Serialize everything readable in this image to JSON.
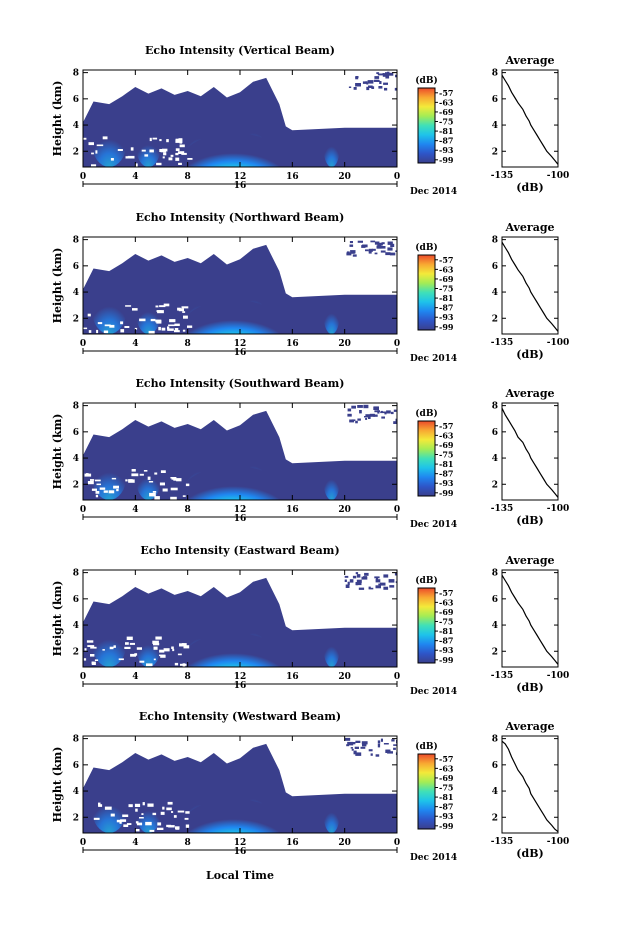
{
  "chart_data": {
    "type": "heatmap",
    "shared": {
      "x_ticks": [
        "0",
        "4",
        "8",
        "12",
        "16",
        "20",
        "0"
      ],
      "x_range": [
        0,
        24
      ],
      "date_label": "16",
      "month_label": "Dec 2014",
      "xlabel": "Local Time",
      "ylabel": "Height (km)",
      "y_ticks": [
        "2",
        "4",
        "6",
        "8"
      ],
      "y_range": [
        0.8,
        8.2
      ],
      "colorbar_title": "(dB)",
      "colorbar_ticks": [
        "-57",
        "-63",
        "-69",
        "-75",
        "-81",
        "-87",
        "-93",
        "-99"
      ],
      "colorbar_range": [
        -101,
        -54
      ],
      "avg_title": "Average",
      "avg_xlabel": "(dB)",
      "avg_xrange": [
        -135,
        -100
      ],
      "colors": {
        "background": "#3a3f8c",
        "colormap": [
          "#3a3f8c",
          "#2e55c8",
          "#1f86f0",
          "#1ec3ea",
          "#3fe0b8",
          "#a4ec55",
          "#f3ea3a",
          "#f8a832",
          "#ec4a2a"
        ]
      }
    },
    "panels": [
      {
        "title": "Echo Intensity (Vertical Beam)",
        "avg_xticks": [
          "-135",
          "-100"
        ],
        "profile_x": [
          -135,
          -133,
          -131,
          -129,
          -127,
          -125,
          -122,
          -120,
          -118,
          -117,
          -115,
          -113,
          -111,
          -109,
          -107,
          -104,
          -102,
          -100
        ],
        "profile_y": [
          7.8,
          7.4,
          7.0,
          6.5,
          6.1,
          5.7,
          5.2,
          4.7,
          4.3,
          4.0,
          3.6,
          3.2,
          2.8,
          2.4,
          2.0,
          1.6,
          1.3,
          1.0
        ]
      },
      {
        "title": "Echo Intensity (Northward Beam)",
        "avg_xticks": [
          "-135",
          "-100"
        ],
        "profile_x": [
          -135,
          -133,
          -131,
          -129,
          -127,
          -125,
          -122,
          -120,
          -118,
          -117,
          -115,
          -113,
          -111,
          -109,
          -107,
          -104,
          -102,
          -100
        ],
        "profile_y": [
          7.8,
          7.4,
          7.0,
          6.5,
          6.1,
          5.7,
          5.2,
          4.7,
          4.3,
          4.0,
          3.6,
          3.2,
          2.8,
          2.4,
          2.0,
          1.6,
          1.3,
          1.0
        ]
      },
      {
        "title": "Echo Intensity (Southward Beam)",
        "avg_xticks": [
          "-135",
          "-100"
        ],
        "profile_x": [
          -135,
          -133,
          -131,
          -129,
          -127,
          -125,
          -122,
          -120,
          -118,
          -117,
          -115,
          -113,
          -111,
          -109,
          -107,
          -104,
          -102,
          -100
        ],
        "profile_y": [
          7.8,
          7.3,
          6.9,
          6.5,
          6.1,
          5.6,
          5.2,
          4.7,
          4.3,
          4.0,
          3.6,
          3.2,
          2.8,
          2.4,
          2.0,
          1.6,
          1.3,
          1.0
        ]
      },
      {
        "title": "Echo Intensity (Eastward Beam)",
        "avg_xticks": [
          "-135",
          "-100"
        ],
        "profile_x": [
          -135,
          -133,
          -131,
          -129,
          -127,
          -125,
          -122,
          -120,
          -118,
          -117,
          -115,
          -113,
          -111,
          -109,
          -107,
          -104,
          -102,
          -100
        ],
        "profile_y": [
          7.8,
          7.4,
          7.0,
          6.5,
          6.1,
          5.7,
          5.2,
          4.7,
          4.3,
          4.0,
          3.6,
          3.2,
          2.8,
          2.4,
          2.0,
          1.6,
          1.3,
          1.0
        ]
      },
      {
        "title": "Echo Intensity (Westward Beam)",
        "avg_xticks": [
          "-135",
          "-100"
        ],
        "profile_x": [
          -135,
          -133,
          -131,
          -129,
          -127,
          -125,
          -122,
          -120,
          -118,
          -117,
          -115,
          -113,
          -111,
          -109,
          -107,
          -104,
          -102,
          -100
        ],
        "profile_y": [
          7.8,
          7.6,
          7.2,
          6.6,
          6.1,
          5.6,
          5.1,
          4.6,
          4.2,
          3.8,
          3.4,
          3.0,
          2.6,
          2.2,
          1.8,
          1.4,
          1.1,
          0.9
        ]
      }
    ]
  }
}
